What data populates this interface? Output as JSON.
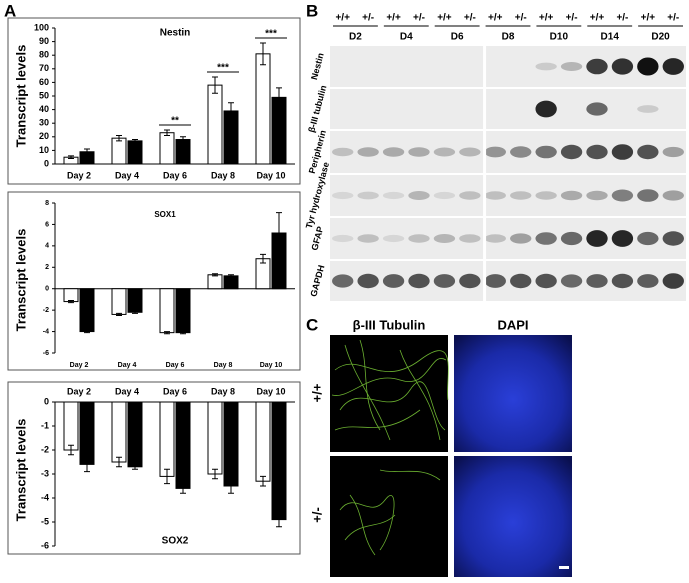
{
  "panel_labels": [
    "A",
    "B",
    "C"
  ],
  "chart_data": [
    {
      "type": "bar",
      "title": "Nestin",
      "y_label": "Transcript levels",
      "categories": [
        "Day 2",
        "Day 4",
        "Day 6",
        "Day 8",
        "Day 10"
      ],
      "series": [
        {
          "color": "#ffffff",
          "values": [
            5,
            19,
            23,
            58,
            81
          ],
          "errors": [
            1,
            2,
            2,
            6,
            8
          ]
        },
        {
          "color": "#000000",
          "values": [
            9,
            17,
            18,
            39,
            49
          ],
          "errors": [
            2,
            1,
            2,
            6,
            7
          ]
        }
      ],
      "ylim": [
        0,
        100
      ],
      "yticks": [
        0,
        10,
        20,
        30,
        40,
        50,
        60,
        70,
        80,
        90,
        100
      ],
      "annotations": [
        {
          "text": "**",
          "category": "Day 6"
        },
        {
          "text": "***",
          "category": "Day 8"
        },
        {
          "text": "***",
          "category": "Day 10"
        }
      ],
      "category_axis_position": "bottom",
      "title_position": "top"
    },
    {
      "type": "bar",
      "title": "SOX1",
      "y_label": "Transcript levels",
      "categories": [
        "Day 2",
        "Day 4",
        "Day 6",
        "Day 8",
        "Day 10"
      ],
      "series": [
        {
          "color": "#ffffff",
          "values": [
            -1.2,
            -2.4,
            -4.1,
            1.3,
            2.8
          ],
          "errors": [
            0.1,
            0.1,
            0.1,
            0.1,
            0.4
          ]
        },
        {
          "color": "#000000",
          "values": [
            -4,
            -2.2,
            -4.1,
            1.2,
            5.2
          ],
          "errors": [
            0.1,
            0.1,
            0.1,
            0.1,
            1.9
          ]
        }
      ],
      "ylim": [
        -6,
        8
      ],
      "yticks": [
        -6,
        -4,
        -2,
        0,
        2,
        4,
        6,
        8
      ],
      "category_axis_position": "bottom",
      "title_position": "top"
    },
    {
      "type": "bar",
      "title": "SOX2",
      "y_label": "Transcript levels",
      "categories": [
        "Day 2",
        "Day 4",
        "Day 6",
        "Day 8",
        "Day 10"
      ],
      "series": [
        {
          "color": "#ffffff",
          "values": [
            -2,
            -2.5,
            -3.1,
            -3,
            -3.3
          ],
          "errors": [
            0.2,
            0.2,
            0.3,
            0.2,
            0.2
          ]
        },
        {
          "color": "#000000",
          "values": [
            -2.6,
            -2.7,
            -3.6,
            -3.5,
            -4.9
          ],
          "errors": [
            0.3,
            0.1,
            0.2,
            0.3,
            0.3
          ]
        }
      ],
      "ylim": [
        -6,
        0
      ],
      "yticks": [
        -6,
        -5,
        -4,
        -3,
        -2,
        -1,
        0
      ],
      "category_axis_position": "top",
      "title_position": "bottom"
    }
  ],
  "blot": {
    "genotypes": [
      "+/+",
      "+/-"
    ],
    "days": [
      "D2",
      "D4",
      "D6",
      "D8",
      "D10",
      "D14",
      "D20"
    ],
    "rows": [
      "Nestin",
      "β-III tubulin",
      "Peripherin",
      "Tyr hydroxylase",
      "GFAP",
      "GAPDH"
    ]
  },
  "microscopy": {
    "columns": [
      "β-III Tubulin",
      "DAPI"
    ],
    "rows": [
      "+/+",
      "+/-"
    ]
  }
}
